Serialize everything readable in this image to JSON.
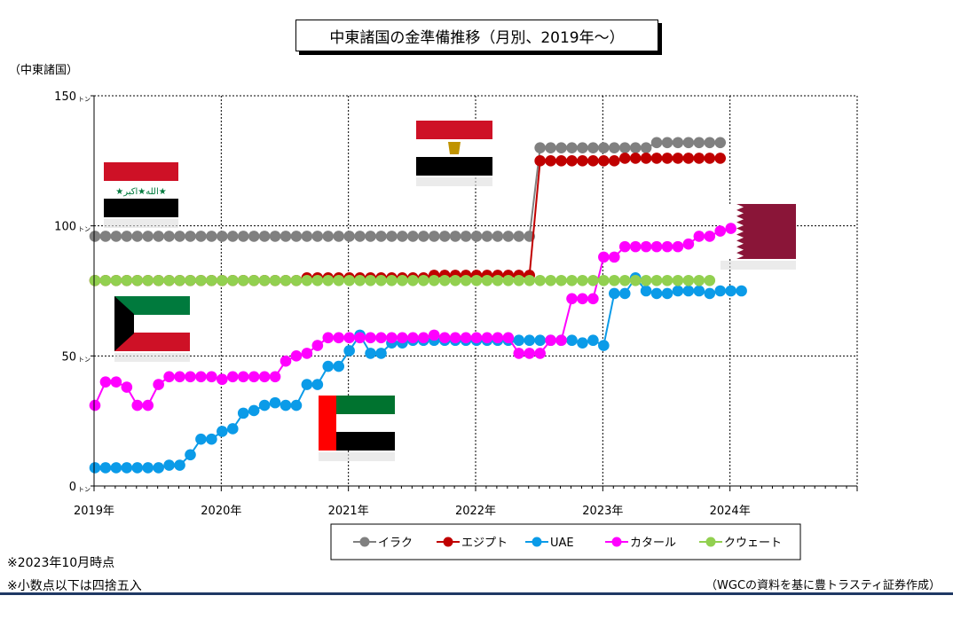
{
  "chart_data": {
    "type": "line",
    "title": "中東諸国の金準備推移（月別、2019年～）",
    "ylabel": "（中東諸国）",
    "y_unit": "トン",
    "ylim": [
      0,
      150
    ],
    "yticks": [
      0,
      50,
      100,
      150
    ],
    "x_start": "2019-01",
    "x_end": "2024-12",
    "xticks": [
      "2019年",
      "2020年",
      "2021年",
      "2022年",
      "2023年",
      "2024年"
    ],
    "grid": true,
    "legend_position": "bottom",
    "series": [
      {
        "name": "イラク",
        "color": "#808080",
        "values": [
          96,
          96,
          96,
          96,
          96,
          96,
          96,
          96,
          96,
          96,
          96,
          96,
          96,
          96,
          96,
          96,
          96,
          96,
          96,
          96,
          96,
          96,
          96,
          96,
          96,
          96,
          96,
          96,
          96,
          96,
          96,
          96,
          96,
          96,
          96,
          96,
          96,
          96,
          96,
          96,
          96,
          96,
          130,
          130,
          130,
          130,
          130,
          130,
          130,
          130,
          130,
          130,
          130,
          132,
          132,
          132,
          132,
          132,
          132,
          132
        ]
      },
      {
        "name": "エジプト",
        "color": "#c00000",
        "values": [
          79,
          79,
          79,
          79,
          79,
          79,
          79,
          79,
          79,
          79,
          79,
          79,
          79,
          79,
          79,
          79,
          79,
          79,
          79,
          79,
          80,
          80,
          80,
          80,
          80,
          80,
          80,
          80,
          80,
          80,
          80,
          80,
          81,
          81,
          81,
          81,
          81,
          81,
          81,
          81,
          81,
          81,
          125,
          125,
          125,
          125,
          125,
          125,
          125,
          125,
          126,
          126,
          126,
          126,
          126,
          126,
          126,
          126,
          126,
          126
        ]
      },
      {
        "name": "UAE",
        "color": "#0b9be8",
        "values": [
          7,
          7,
          7,
          7,
          7,
          7,
          7,
          8,
          8,
          12,
          18,
          18,
          21,
          22,
          28,
          29,
          31,
          32,
          31,
          31,
          39,
          39,
          46,
          46,
          52,
          58,
          51,
          51,
          55,
          55,
          56,
          56,
          56,
          56,
          56,
          56,
          56,
          56,
          56,
          56,
          56,
          56,
          56,
          56,
          56,
          56,
          55,
          56,
          54,
          74,
          74,
          80,
          75,
          74,
          74,
          75,
          75,
          75,
          74,
          75,
          75,
          75
        ]
      },
      {
        "name": "カタール",
        "color": "#ff00ff",
        "values": [
          31,
          40,
          40,
          38,
          31,
          31,
          39,
          42,
          42,
          42,
          42,
          42,
          41,
          42,
          42,
          42,
          42,
          42,
          48,
          50,
          51,
          54,
          57,
          57,
          57,
          57,
          57,
          57,
          57,
          57,
          57,
          57,
          58,
          57,
          57,
          57,
          57,
          57,
          57,
          57,
          51,
          51,
          51,
          56,
          56,
          72,
          72,
          72,
          88,
          88,
          92,
          92,
          92,
          92,
          92,
          92,
          93,
          96,
          96,
          98,
          99
        ]
      },
      {
        "name": "クウェート",
        "color": "#92d050",
        "values": [
          79,
          79,
          79,
          79,
          79,
          79,
          79,
          79,
          79,
          79,
          79,
          79,
          79,
          79,
          79,
          79,
          79,
          79,
          79,
          79,
          79,
          79,
          79,
          79,
          79,
          79,
          79,
          79,
          79,
          79,
          79,
          79,
          79,
          79,
          79,
          79,
          79,
          79,
          79,
          79,
          79,
          79,
          79,
          79,
          79,
          79,
          79,
          79,
          79,
          79,
          79,
          79,
          79,
          79,
          79,
          79,
          79,
          79,
          79
        ]
      }
    ]
  },
  "notes": {
    "as_of": "※2023年10月時点",
    "rounding": "※小数点以下は四捨五入",
    "source": "（WGCの資料を基に豊トラスティ証券作成）"
  },
  "flags": [
    {
      "name": "iraq-flag",
      "country": "イラク",
      "emblem": "★الله★اكبر★"
    },
    {
      "name": "egypt-flag",
      "country": "エジプト"
    },
    {
      "name": "qatar-flag",
      "country": "カタール"
    },
    {
      "name": "kuwait-flag",
      "country": "クウェート"
    },
    {
      "name": "uae-flag",
      "country": "UAE"
    }
  ]
}
